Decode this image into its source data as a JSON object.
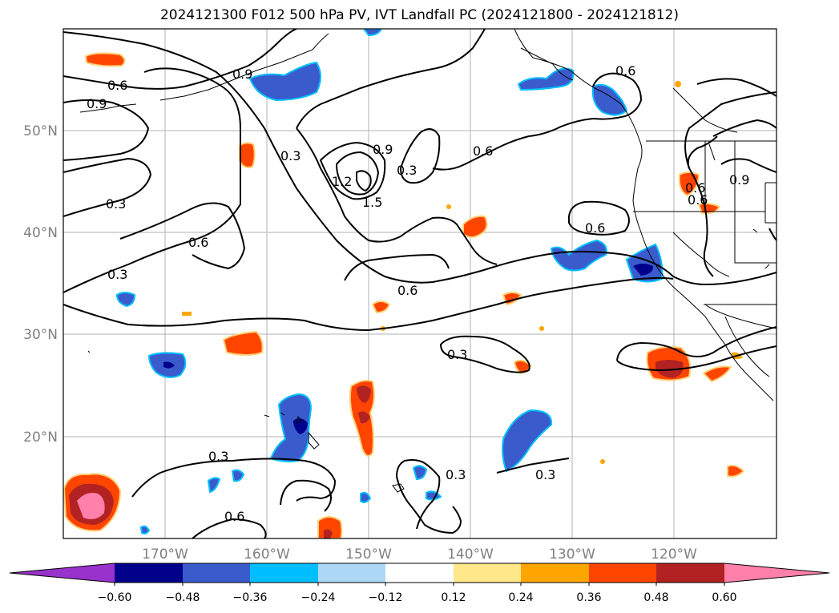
{
  "title": "2024121300 F012 500 hPa PV, IVT Landfall PC (2024121800 - 2024121812)",
  "map": {
    "lon_labels": [
      "170°W",
      "160°W",
      "150°W",
      "140°W",
      "130°W",
      "120°W"
    ],
    "lat_labels": [
      "50°N",
      "40°N",
      "30°N",
      "20°N"
    ],
    "contour_labels": [
      "0.6",
      "0.9",
      "0.9",
      "0.6",
      "0.3",
      "0.9",
      "0.3",
      "1.2",
      "1.5",
      "0.6",
      "0.6",
      "0.3",
      "0.6",
      "0.3",
      "0.6",
      "0.6",
      "0.3",
      "0.3",
      "0.3",
      "0.3",
      "0.6",
      "0.9",
      "0.6",
      "0.6"
    ],
    "colors": {
      "grid": "#b0b0b0",
      "contour": "#000000",
      "coast": "#000000",
      "axis_label": "#808080"
    }
  },
  "colorbar": {
    "ticks": [
      "−0.60",
      "−0.48",
      "−0.36",
      "−0.24",
      "−0.12",
      "0.12",
      "0.24",
      "0.36",
      "0.48",
      "0.60"
    ],
    "colors": [
      "#9932cc",
      "#00008b",
      "#3a5bcc",
      "#00bfff",
      "#add8f5",
      "#ffffff",
      "#ffe88a",
      "#ffa500",
      "#ff4500",
      "#b22222",
      "#ff80aa"
    ]
  }
}
